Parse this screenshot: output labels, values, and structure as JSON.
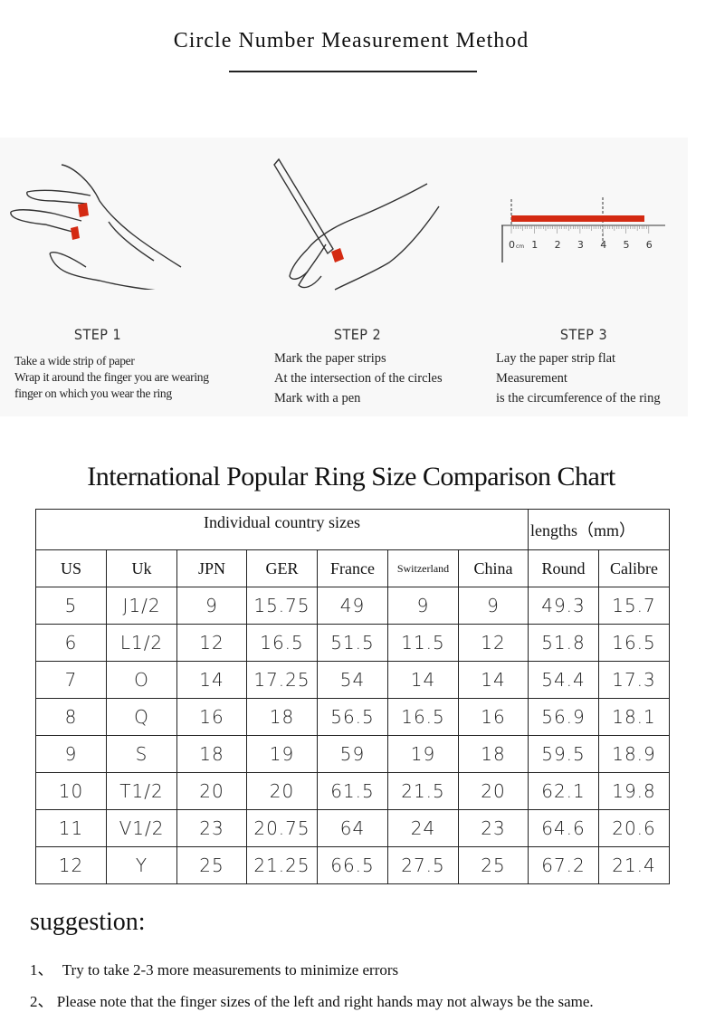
{
  "header": {
    "title": "Circle Number Measurement Method"
  },
  "steps": [
    {
      "label": "STEP 1",
      "lines": [
        "Take a wide strip of paper",
        "Wrap it around the finger you are wearing",
        "finger on which you wear the ring"
      ]
    },
    {
      "label": "STEP 2",
      "lines": [
        "Mark the paper strips",
        "At the intersection of the circles",
        "Mark with a pen"
      ]
    },
    {
      "label": "STEP 3",
      "lines": [
        "Lay the paper strip flat",
        "Measurement",
        "is the circumference of the ring"
      ]
    }
  ],
  "ruler": {
    "unit": "cm",
    "ticks": [
      "0",
      "1",
      "2",
      "3",
      "4",
      "5",
      "6"
    ],
    "strip_color": "#d42a12"
  },
  "chart": {
    "title": "International Popular Ring Size Comparison Chart",
    "group_headers": [
      "Individual country sizes",
      "lengths（mm）"
    ],
    "columns": [
      "US",
      "Uk",
      "JPN",
      "GER",
      "France",
      "Switzerland",
      "China",
      "Round",
      "Calibre"
    ],
    "rows": [
      [
        "5",
        "J1/2",
        "9",
        "15.75",
        "49",
        "9",
        "9",
        "49.3",
        "15.7"
      ],
      [
        "6",
        "L1/2",
        "12",
        "16.5",
        "51.5",
        "11.5",
        "12",
        "51.8",
        "16.5"
      ],
      [
        "7",
        "O",
        "14",
        "17.25",
        "54",
        "14",
        "14",
        "54.4",
        "17.3"
      ],
      [
        "8",
        "Q",
        "16",
        "18",
        "56.5",
        "16.5",
        "16",
        "56.9",
        "18.1"
      ],
      [
        "9",
        "S",
        "18",
        "19",
        "59",
        "19",
        "18",
        "59.5",
        "18.9"
      ],
      [
        "10",
        "T1/2",
        "20",
        "20",
        "61.5",
        "21.5",
        "20",
        "62.1",
        "19.8"
      ],
      [
        "11",
        "V1/2",
        "23",
        "20.75",
        "64",
        "24",
        "23",
        "64.6",
        "20.6"
      ],
      [
        "12",
        "Y",
        "25",
        "21.25",
        "66.5",
        "27.5",
        "25",
        "67.2",
        "21.4"
      ]
    ]
  },
  "suggestion": {
    "title": "suggestion:",
    "items": [
      {
        "num": "1、",
        "text": "Try to take 2-3 more measurements to minimize errors"
      },
      {
        "num": "2、",
        "text": "Please note that the finger sizes of the left and right hands may not always be the same."
      }
    ]
  }
}
